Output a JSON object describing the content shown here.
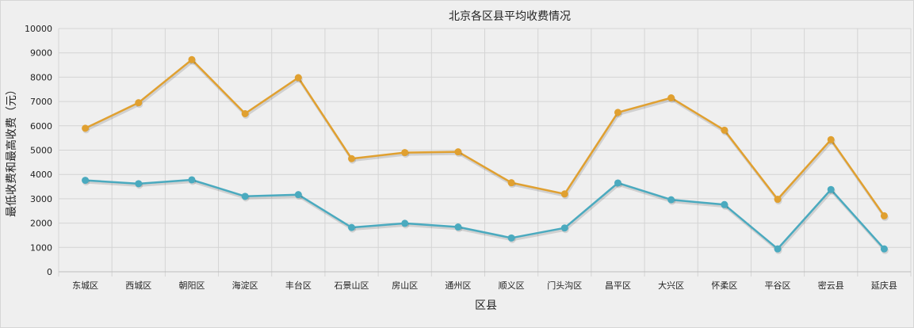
{
  "chart_data": {
    "type": "line",
    "title": "北京各区县平均收费情况",
    "xlabel": "区县",
    "ylabel": "最低收费和最高收费（元）",
    "ylim": [
      0,
      10000
    ],
    "yticks": [
      0,
      1000,
      2000,
      3000,
      4000,
      5000,
      6000,
      7000,
      8000,
      9000,
      10000
    ],
    "grid": true,
    "categories": [
      "东城区",
      "西城区",
      "朝阳区",
      "海淀区",
      "丰台区",
      "石景山区",
      "房山区",
      "通州区",
      "顺义区",
      "门头沟区",
      "昌平区",
      "大兴区",
      "怀柔区",
      "平谷区",
      "密云县",
      "延庆县"
    ],
    "series": [
      {
        "color": "#e0a030",
        "values": [
          5900,
          6950,
          8720,
          6500,
          7980,
          4650,
          4900,
          4930,
          3660,
          3200,
          6550,
          7150,
          5820,
          2980,
          5430,
          2300
        ]
      },
      {
        "color": "#4aaabf",
        "values": [
          3760,
          3620,
          3780,
          3100,
          3170,
          1820,
          1990,
          1840,
          1390,
          1800,
          3650,
          2960,
          2760,
          940,
          3380,
          940
        ]
      }
    ]
  }
}
